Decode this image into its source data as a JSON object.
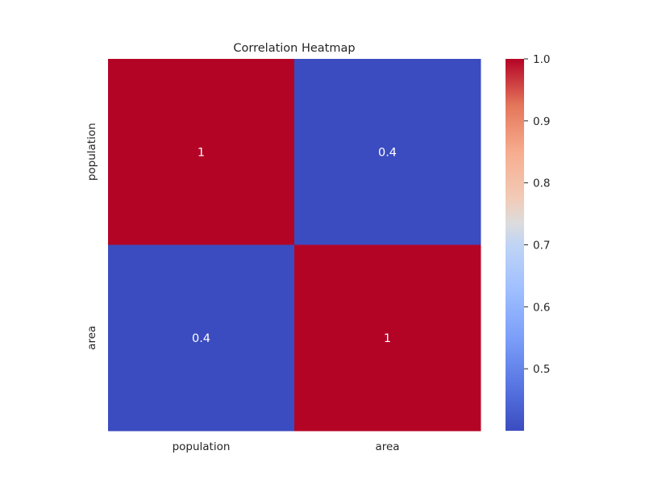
{
  "chart_data": {
    "type": "heatmap",
    "title": "Correlation Heatmap",
    "xlabel": "",
    "ylabel": "",
    "x_categories": [
      "population",
      "area"
    ],
    "y_categories": [
      "population",
      "area"
    ],
    "values": [
      [
        1,
        0.4
      ],
      [
        0.4,
        1
      ]
    ],
    "annotations": [
      [
        "1",
        "0.4"
      ],
      [
        "0.4",
        "1"
      ]
    ],
    "colormap": "coolwarm",
    "colors": {
      "low": "#3b4cc0",
      "mid": "#dddddd",
      "high": "#b40426"
    },
    "colorbar": {
      "vmin": 0.4,
      "vmax": 1.0,
      "ticks": [
        0.5,
        0.6,
        0.7,
        0.8,
        0.9,
        1.0
      ],
      "tick_labels": [
        "0.5",
        "0.6",
        "0.7",
        "0.8",
        "0.9",
        "1.0"
      ],
      "placement": "right"
    },
    "grid": false
  }
}
